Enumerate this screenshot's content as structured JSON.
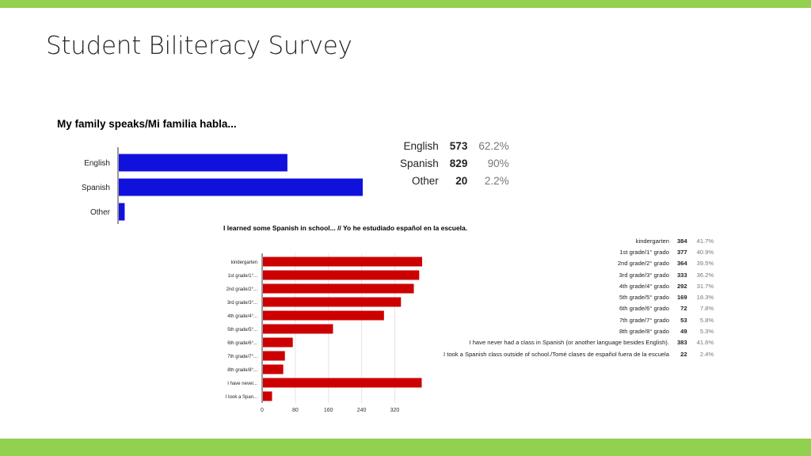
{
  "slide": {
    "title": "Student Biliteracy Survey"
  },
  "colors": {
    "band": "#92d050",
    "chart1_bar": "#1111dd",
    "chart2_bar": "#cc0000"
  },
  "chart_data": [
    {
      "type": "bar",
      "orientation": "horizontal",
      "title": "My family speaks/Mi familia habla...",
      "categories": [
        "English",
        "Spanish",
        "Other"
      ],
      "values": [
        573,
        829,
        20
      ],
      "percents": [
        "62.2%",
        "90%",
        "2.2%"
      ],
      "xlim": [
        0,
        829
      ],
      "summary": [
        {
          "label": "English",
          "count": "573",
          "percent": "62.2%"
        },
        {
          "label": "Spanish",
          "count": "829",
          "percent": "90%"
        },
        {
          "label": "Other",
          "count": "20",
          "percent": "2.2%"
        }
      ]
    },
    {
      "type": "bar",
      "orientation": "horizontal",
      "title": "I learned some Spanish in school... // Yo he estudiado español en la escuela.",
      "categories": [
        "kindergarten",
        "1st grade/1°...",
        "2nd grade/2°...",
        "3rd grade/3°...",
        "4th grade/4°...",
        "5th grade/5°...",
        "6th grade/6°...",
        "7th grade/7°...",
        "8th grade/8°...",
        "I have never...",
        "I took a Span..."
      ],
      "values": [
        384,
        377,
        364,
        333,
        292,
        169,
        72,
        53,
        49,
        383,
        22
      ],
      "xticks": [
        "0",
        "80",
        "160",
        "240",
        "320"
      ],
      "xlim": [
        0,
        384
      ],
      "summary": [
        {
          "label": "kindergarten",
          "count": "384",
          "percent": "41.7%"
        },
        {
          "label": "1st grade/1° grado",
          "count": "377",
          "percent": "40.9%"
        },
        {
          "label": "2nd grade/2° grado",
          "count": "364",
          "percent": "39.5%"
        },
        {
          "label": "3rd grade/3° grado",
          "count": "333",
          "percent": "36.2%"
        },
        {
          "label": "4th grade/4° grado",
          "count": "292",
          "percent": "31.7%"
        },
        {
          "label": "5th grade/5° grado",
          "count": "169",
          "percent": "18.3%"
        },
        {
          "label": "6th grade/6° grado",
          "count": "72",
          "percent": "7.8%"
        },
        {
          "label": "7th grade/7° grado",
          "count": "53",
          "percent": "5.8%"
        },
        {
          "label": "8th grade/8° grado",
          "count": "49",
          "percent": "5.3%"
        },
        {
          "label": "I have never had a class in Spanish (or another language besides English).",
          "count": "383",
          "percent": "41.6%"
        },
        {
          "label": "I took a Spanish class outside of school./Tomé clases de español fuera de la escuela",
          "count": "22",
          "percent": "2.4%"
        }
      ]
    }
  ]
}
